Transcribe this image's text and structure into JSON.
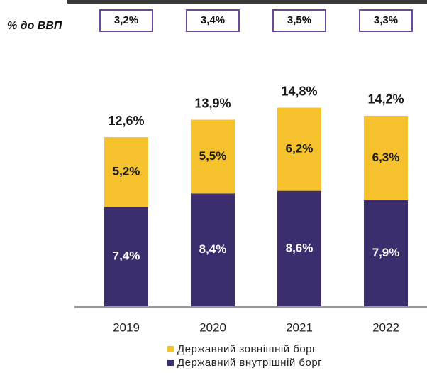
{
  "chart_data": {
    "type": "stacked_bar",
    "categories": [
      "2019",
      "2020",
      "2021",
      "2022"
    ],
    "series": [
      {
        "name": "Державний внутрішній борг",
        "color": "#3b2d6e",
        "values": [
          7.4,
          8.4,
          8.6,
          7.9
        ],
        "value_labels": [
          "7,4%",
          "8,4%",
          "8,6%",
          "7,9%"
        ]
      },
      {
        "name": "Державний зовнішній борг",
        "color": "#f5c22e",
        "values": [
          5.2,
          5.5,
          6.2,
          6.3
        ],
        "value_labels": [
          "5,2%",
          "5,5%",
          "6,2%",
          "6,3%"
        ]
      }
    ],
    "totals": [
      12.6,
      13.9,
      14.8,
      14.2
    ],
    "total_labels": [
      "12,6%",
      "13,9%",
      "14,8%",
      "14,2%"
    ],
    "gdp_share": {
      "label": "% до ВВП",
      "values": [
        3.2,
        3.4,
        3.5,
        3.3
      ],
      "value_labels": [
        "3,2%",
        "3,4%",
        "3,5%",
        "3,3%"
      ]
    },
    "ylim": [
      0,
      17
    ]
  }
}
